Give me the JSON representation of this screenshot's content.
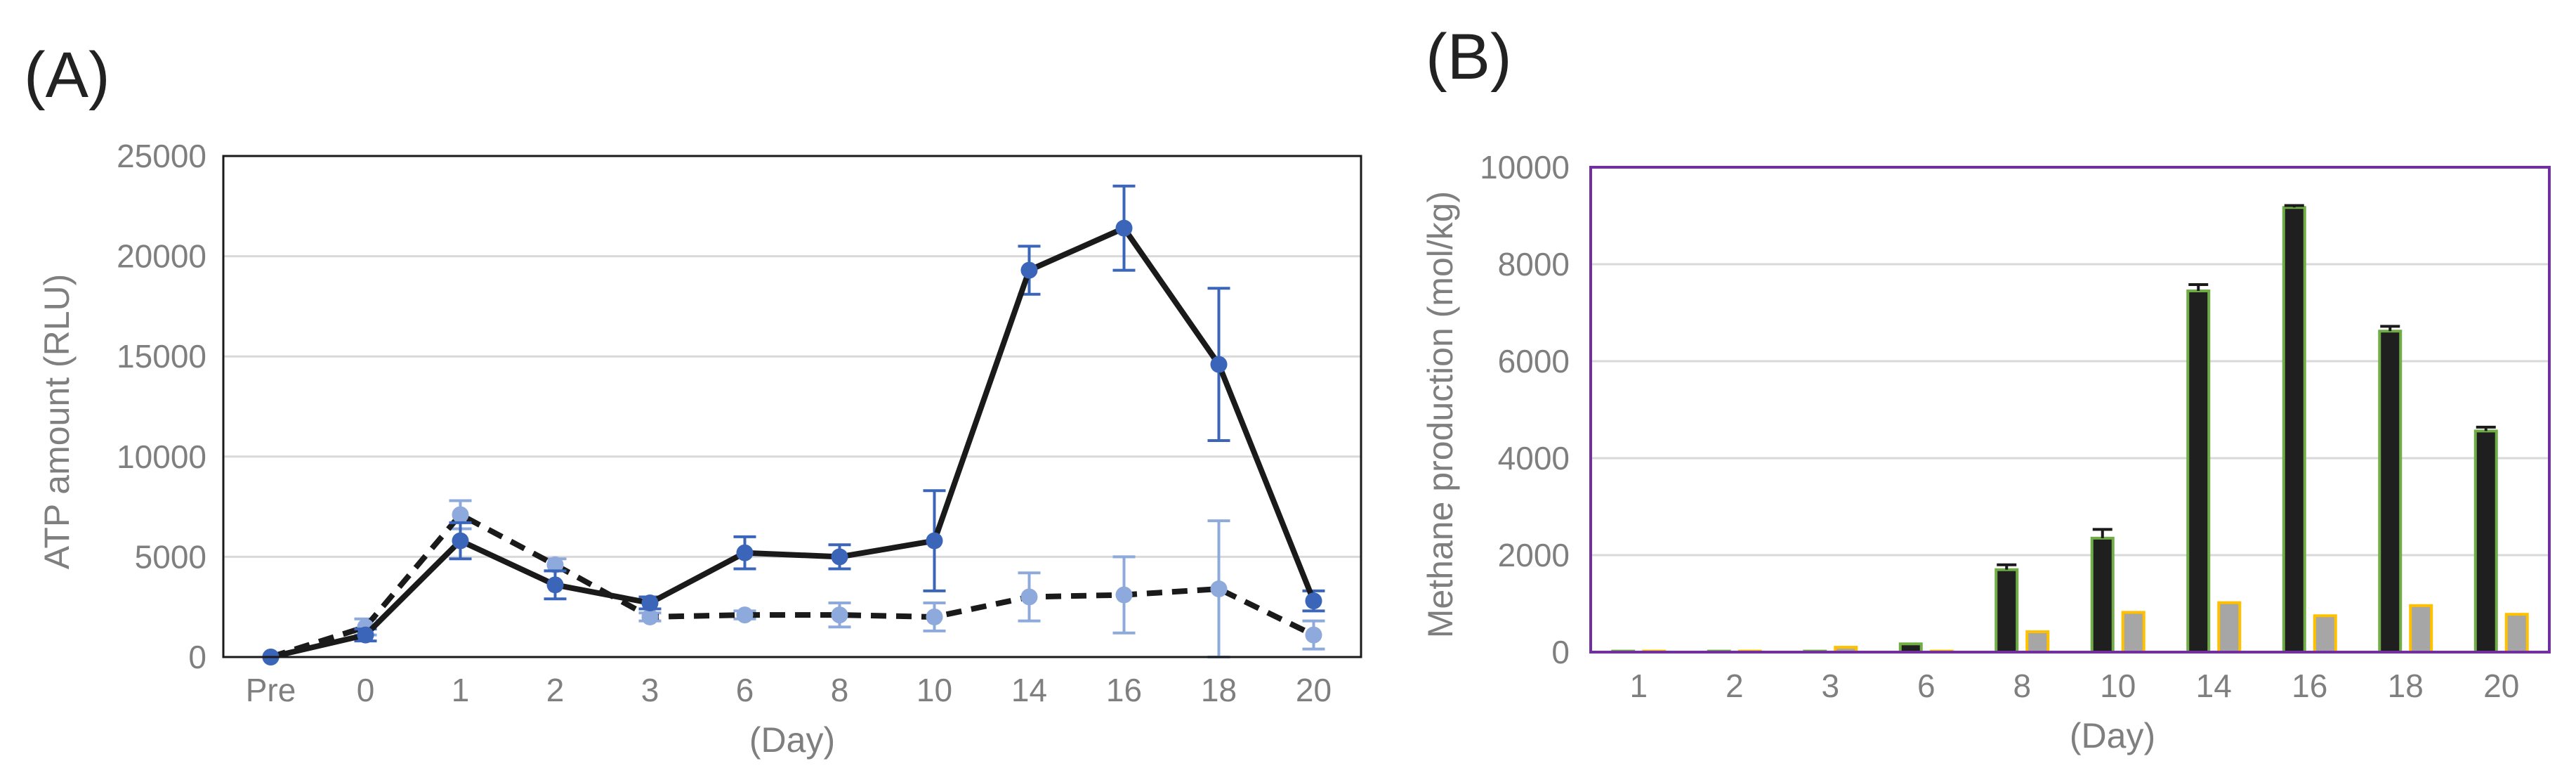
{
  "chart_data": [
    {
      "type": "line",
      "panel_label": "(A)",
      "xlabel": "(Day)",
      "ylabel": "ATP amount (RLU)",
      "ylim": [
        0,
        25000
      ],
      "yticks": [
        "0",
        "5000",
        "10000",
        "15000",
        "20000",
        "25000"
      ],
      "categories": [
        "Pre",
        "0",
        "1",
        "2",
        "3",
        "6",
        "8",
        "10",
        "14",
        "16",
        "18",
        "20"
      ],
      "grid": "horizontal",
      "series": [
        {
          "style": "solid",
          "line_color": "#1a1a1a",
          "marker_color": "#3a65b8",
          "values": [
            0,
            1100,
            5800,
            3600,
            2700,
            5200,
            5000,
            5800,
            19300,
            21400,
            14600,
            2800
          ],
          "errors": [
            0,
            300,
            900,
            700,
            300,
            800,
            600,
            2500,
            1200,
            2100,
            3800,
            500
          ]
        },
        {
          "style": "dashed",
          "line_color": "#1a1a1a",
          "marker_color": "#8ea9db",
          "values": [
            0,
            1500,
            7100,
            4600,
            2000,
            2100,
            2100,
            2000,
            3000,
            3100,
            3400,
            1100
          ],
          "errors": [
            0,
            400,
            700,
            300,
            200,
            200,
            600,
            700,
            1200,
            1900,
            3400,
            700
          ]
        }
      ]
    },
    {
      "type": "bar",
      "panel_label": "(B)",
      "xlabel": "(Day)",
      "ylabel": "Methane production (mol/kg)",
      "ylim": [
        0,
        10000
      ],
      "yticks": [
        "0",
        "2000",
        "4000",
        "6000",
        "8000",
        "10000"
      ],
      "categories": [
        "1",
        "2",
        "3",
        "6",
        "8",
        "10",
        "14",
        "16",
        "18",
        "20"
      ],
      "grid": "horizontal",
      "frame_color": "#7030a0",
      "series": [
        {
          "fill": "#1f1f1f",
          "edge": "#70ad47",
          "values": [
            20,
            20,
            20,
            170,
            1700,
            2350,
            7450,
            9170,
            6620,
            4560
          ],
          "errors": [
            0,
            0,
            0,
            0,
            100,
            180,
            130,
            40,
            100,
            80
          ]
        },
        {
          "fill": "#a6a6a6",
          "edge": "#ffc000",
          "values": [
            20,
            20,
            100,
            20,
            420,
            820,
            1020,
            750,
            960,
            780
          ],
          "errors": [
            0,
            0,
            0,
            0,
            0,
            0,
            0,
            0,
            0,
            0
          ]
        }
      ]
    }
  ]
}
